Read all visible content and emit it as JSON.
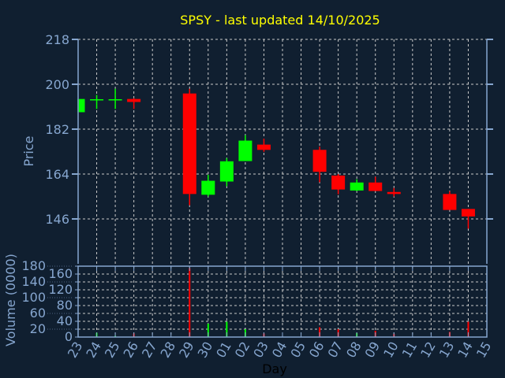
{
  "chart_data": {
    "type": "candlestick",
    "title": "SPSY - last updated 14/10/2025",
    "xlabel": "Day",
    "colors": {
      "background": "#101f30",
      "axis": "#86a6cf",
      "grid": "#c8c8c8",
      "up": "#00ff00",
      "down": "#ff0000",
      "title": "#ffff00",
      "xlabel": "#000000"
    },
    "x_tick_labels": [
      "23",
      "24",
      "25",
      "26",
      "27",
      "28",
      "29",
      "30",
      "01",
      "02",
      "03",
      "04",
      "05",
      "06",
      "07",
      "08",
      "09",
      "10",
      "11",
      "12",
      "13",
      "14",
      "15"
    ],
    "price_panel": {
      "ylabel": "Price",
      "ylim": [
        128,
        218
      ],
      "y_ticks": [
        146,
        164,
        182,
        200,
        218
      ],
      "grid": true,
      "candles": [
        {
          "day": "23",
          "open": 188.8,
          "high": 194.1,
          "low": 188.8,
          "close": 194.1
        },
        {
          "day": "24",
          "open": 193.8,
          "high": 195.7,
          "low": 190.1,
          "close": 194.0
        },
        {
          "day": "25",
          "open": 193.8,
          "high": 198.2,
          "low": 190.1,
          "close": 194.0
        },
        {
          "day": "26",
          "open": 194.1,
          "high": 194.4,
          "low": 190.1,
          "close": 192.9
        },
        {
          "day": "29",
          "open": 196.3,
          "high": 198.2,
          "low": 151.5,
          "close": 156.0
        },
        {
          "day": "30",
          "open": 155.7,
          "high": 163.7,
          "low": 155.0,
          "close": 161.3
        },
        {
          "day": "01",
          "open": 161.0,
          "high": 170.4,
          "low": 159.1,
          "close": 169.1
        },
        {
          "day": "02",
          "open": 169.2,
          "high": 179.6,
          "low": 169.2,
          "close": 177.4
        },
        {
          "day": "03",
          "open": 175.8,
          "high": 178.2,
          "low": 172.9,
          "close": 173.7
        },
        {
          "day": "06",
          "open": 173.7,
          "high": 175.0,
          "low": 160.7,
          "close": 164.9
        },
        {
          "day": "07",
          "open": 163.4,
          "high": 164.0,
          "low": 155.9,
          "close": 157.8
        },
        {
          "day": "08",
          "open": 157.4,
          "high": 161.9,
          "low": 157.2,
          "close": 160.6
        },
        {
          "day": "09",
          "open": 160.6,
          "high": 162.9,
          "low": 157.2,
          "close": 157.2
        },
        {
          "day": "10",
          "open": 156.8,
          "high": 158.4,
          "low": 155.0,
          "close": 156.0
        },
        {
          "day": "13",
          "open": 156.0,
          "high": 157.1,
          "low": 149.6,
          "close": 149.6
        },
        {
          "day": "14",
          "open": 150.0,
          "high": 150.0,
          "low": 142.1,
          "close": 147.0
        }
      ]
    },
    "volume_panel": {
      "ylabel": "Volume (0000)",
      "ylim": [
        0,
        180
      ],
      "y_ticks": [
        0,
        20,
        40,
        60,
        80,
        100,
        120,
        140,
        160,
        180
      ],
      "grid": true,
      "bars": [
        {
          "day": "24",
          "value": 11,
          "dir": "up"
        },
        {
          "day": "25",
          "value": 3,
          "dir": "up"
        },
        {
          "day": "26",
          "value": 9,
          "dir": "down"
        },
        {
          "day": "29",
          "value": 175,
          "dir": "down"
        },
        {
          "day": "30",
          "value": 34,
          "dir": "up"
        },
        {
          "day": "01",
          "value": 39,
          "dir": "up"
        },
        {
          "day": "02",
          "value": 20,
          "dir": "up"
        },
        {
          "day": "03",
          "value": 9,
          "dir": "down"
        },
        {
          "day": "06",
          "value": 25,
          "dir": "down"
        },
        {
          "day": "07",
          "value": 20,
          "dir": "down"
        },
        {
          "day": "08",
          "value": 10,
          "dir": "up"
        },
        {
          "day": "09",
          "value": 16,
          "dir": "down"
        },
        {
          "day": "10",
          "value": 8,
          "dir": "down"
        },
        {
          "day": "13",
          "value": 13,
          "dir": "down"
        },
        {
          "day": "14",
          "value": 39,
          "dir": "down"
        }
      ]
    }
  }
}
